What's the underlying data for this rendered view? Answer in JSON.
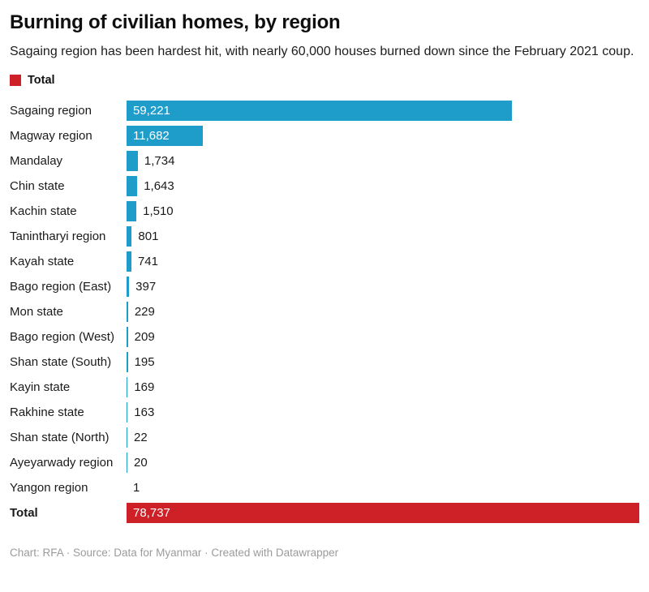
{
  "header": {
    "title": "Burning of civilian homes, by region",
    "subtitle": "Sagaing region has been hardest hit, with nearly 60,000 houses burned down since the February 2021 coup."
  },
  "legend": {
    "label": "Total",
    "swatch_color": "#cd2027"
  },
  "chart_data": {
    "type": "bar",
    "orientation": "horizontal",
    "title": "Burning of civilian homes, by region",
    "subtitle": "Sagaing region has been hardest hit, with nearly 60,000 houses burned down since the February 2021 coup.",
    "xlabel": "",
    "ylabel": "",
    "axis_range_max": 78737,
    "grid": "off",
    "legend_position": "top-left",
    "colors": {
      "bar": "#1e9dcb",
      "total": "#cd2027",
      "inside_label": "#ffffff",
      "outside_label": "#1a1a1a"
    },
    "rows": [
      {
        "label": "Sagaing region",
        "value": 59221,
        "value_label": "59,221",
        "total": false
      },
      {
        "label": "Magway region",
        "value": 11682,
        "value_label": "11,682",
        "total": false
      },
      {
        "label": "Mandalay",
        "value": 1734,
        "value_label": "1,734",
        "total": false
      },
      {
        "label": "Chin state",
        "value": 1643,
        "value_label": "1,643",
        "total": false
      },
      {
        "label": "Kachin state",
        "value": 1510,
        "value_label": "1,510",
        "total": false
      },
      {
        "label": "Tanintharyi region",
        "value": 801,
        "value_label": "801",
        "total": false
      },
      {
        "label": "Kayah state",
        "value": 741,
        "value_label": "741",
        "total": false
      },
      {
        "label": "Bago region (East)",
        "value": 397,
        "value_label": "397",
        "total": false
      },
      {
        "label": "Mon state",
        "value": 229,
        "value_label": "229",
        "total": false
      },
      {
        "label": "Bago region (West)",
        "value": 209,
        "value_label": "209",
        "total": false
      },
      {
        "label": "Shan state (South)",
        "value": 195,
        "value_label": "195",
        "total": false
      },
      {
        "label": "Kayin state",
        "value": 169,
        "value_label": "169",
        "total": false
      },
      {
        "label": "Rakhine state",
        "value": 163,
        "value_label": "163",
        "total": false
      },
      {
        "label": "Shan state (North)",
        "value": 22,
        "value_label": "22",
        "total": false
      },
      {
        "label": "Ayeyarwady region",
        "value": 20,
        "value_label": "20",
        "total": false
      },
      {
        "label": "Yangon region",
        "value": 1,
        "value_label": "1",
        "total": false
      },
      {
        "label": "Total",
        "value": 78737,
        "value_label": "78,737",
        "total": true
      }
    ]
  },
  "footer": {
    "attribution": "Chart: RFA · Source: Data for Myanmar · Created with Datawrapper"
  }
}
